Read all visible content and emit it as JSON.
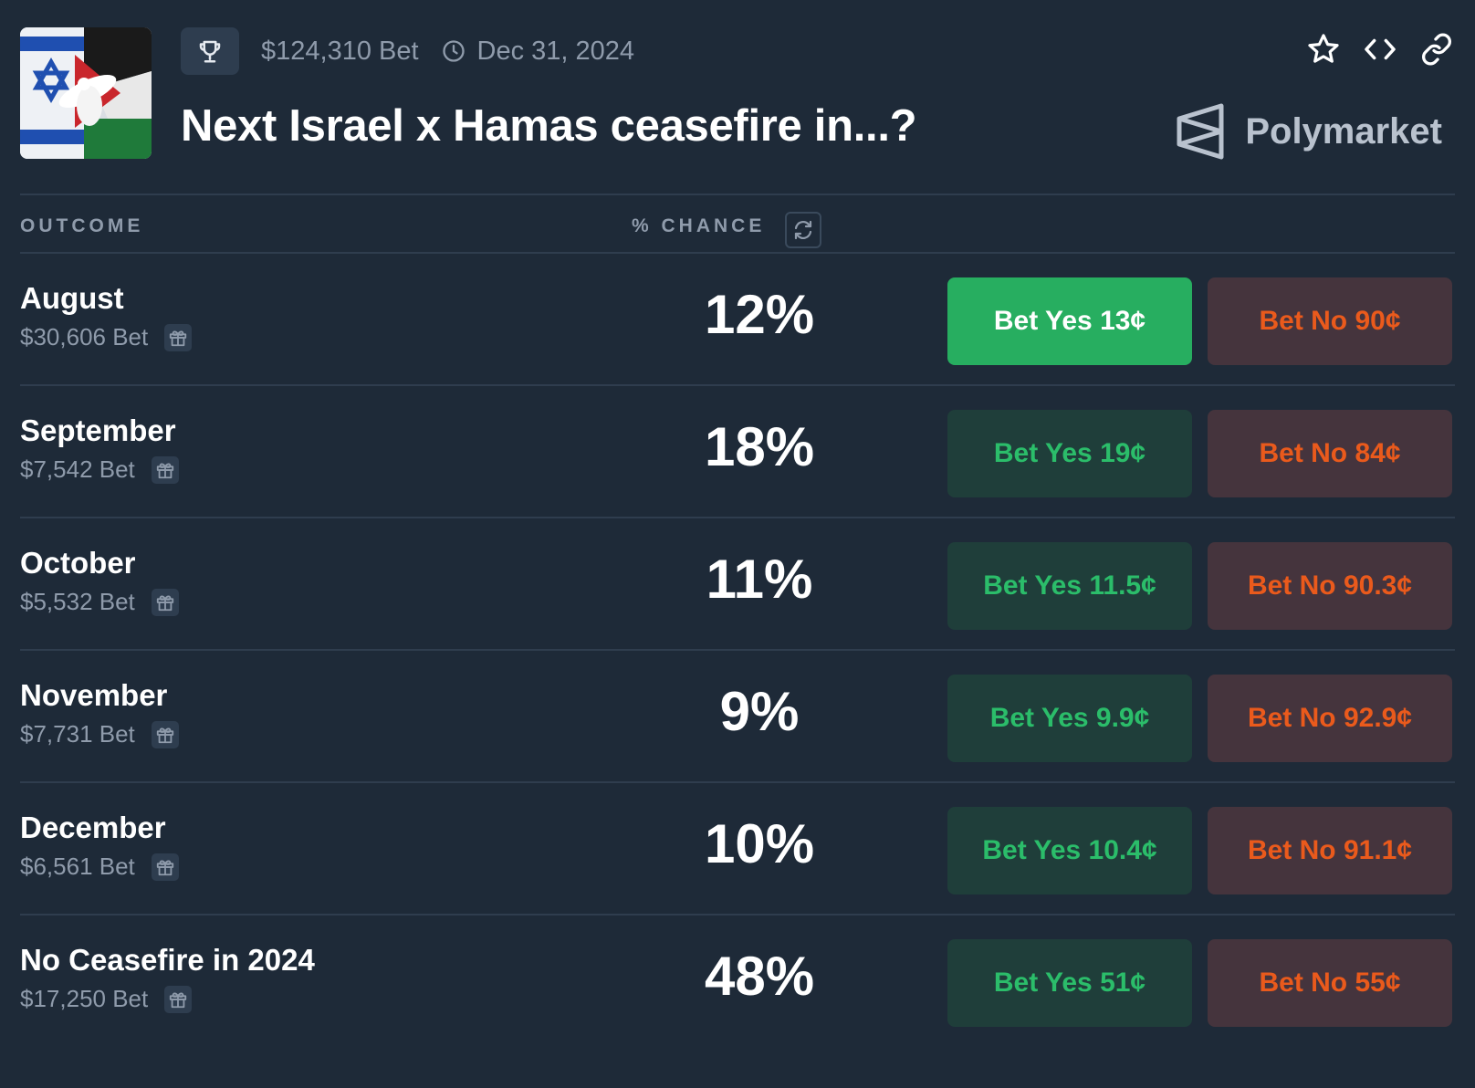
{
  "header": {
    "volume": "$124,310 Bet",
    "end_date": "Dec 31, 2024",
    "title": "Next Israel x Hamas ceasefire in...?",
    "brand": "Polymarket"
  },
  "table": {
    "outcome_header": "OUTCOME",
    "chance_header": "% CHANCE"
  },
  "rows": [
    {
      "name": "August",
      "volume": "$30,606 Bet",
      "chance": "12%",
      "yes": "Bet Yes 13¢",
      "no": "Bet No 90¢"
    },
    {
      "name": "September",
      "volume": "$7,542 Bet",
      "chance": "18%",
      "yes": "Bet Yes 19¢",
      "no": "Bet No 84¢"
    },
    {
      "name": "October",
      "volume": "$5,532 Bet",
      "chance": "11%",
      "yes": "Bet Yes 11.5¢",
      "no": "Bet No 90.3¢"
    },
    {
      "name": "November",
      "volume": "$7,731 Bet",
      "chance": "9%",
      "yes": "Bet Yes 9.9¢",
      "no": "Bet No 92.9¢"
    },
    {
      "name": "December",
      "volume": "$6,561 Bet",
      "chance": "10%",
      "yes": "Bet Yes 10.4¢",
      "no": "Bet No 91.1¢"
    },
    {
      "name": "No Ceasefire in 2024",
      "volume": "$17,250 Bet",
      "chance": "48%",
      "yes": "Bet Yes 51¢",
      "no": "Bet No 55¢"
    }
  ],
  "colors": {
    "background": "#1e2a38",
    "yes_active": "#27ae60",
    "yes_text": "#2bbd6a",
    "no_text": "#ea5a1c"
  },
  "icons": [
    "trophy-icon",
    "clock-icon",
    "star-icon",
    "embed-code-icon",
    "link-icon",
    "polymarket-logo",
    "refresh-icon",
    "gift-icon"
  ]
}
